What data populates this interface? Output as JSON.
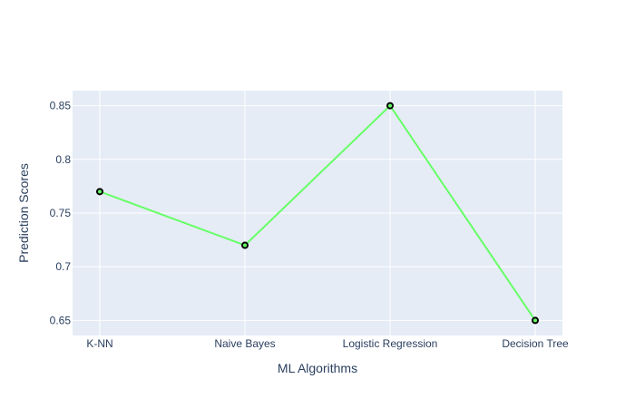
{
  "chart_data": {
    "type": "line",
    "categories": [
      "K-NN",
      "Naive Bayes",
      "Logistic Regression",
      "Decision Tree"
    ],
    "series": [
      {
        "values": [
          0.77,
          0.72,
          0.85,
          0.65
        ]
      }
    ],
    "xlabel": "ML Algorithms",
    "ylabel": "Prediction Scores",
    "ylim": [
      0.636,
      0.864
    ],
    "yticks": [
      0.65,
      0.7,
      0.75,
      0.8,
      0.85
    ],
    "ytick_labels": [
      "0.65",
      "0.7",
      "0.75",
      "0.8",
      "0.85"
    ],
    "grid": true,
    "legend": "none",
    "colors": {
      "plot_background": "#e5ecf6",
      "grid": "#ffffff",
      "line": "#66ff66",
      "marker_fill": "#66ff66",
      "marker_edge": "#000000",
      "text": "#2a3f5f"
    }
  }
}
